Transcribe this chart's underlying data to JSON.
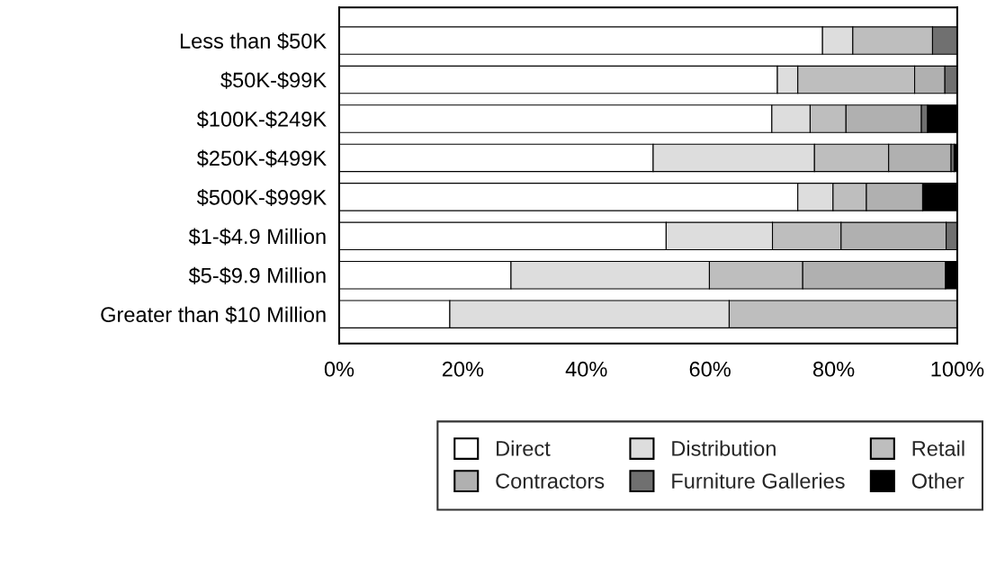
{
  "chart_data": {
    "type": "bar",
    "orientation": "horizontal",
    "stacked": true,
    "categories": [
      "Less than $50K",
      "$50K-$99K",
      "$100K-$249K",
      "$250K-$499K",
      "$500K-$999K",
      "$1-$4.9 Million",
      "$5-$9.9 Million",
      "Greater than $10 Million"
    ],
    "series": [
      {
        "name": "Direct",
        "color": "#ffffff",
        "values": [
          78.2,
          70.9,
          70.0,
          50.8,
          74.2,
          52.9,
          27.8,
          17.9
        ]
      },
      {
        "name": "Distribution",
        "color": "#dddddd",
        "values": [
          4.9,
          3.3,
          6.2,
          26.1,
          5.7,
          17.2,
          32.1,
          45.2
        ]
      },
      {
        "name": "Retail",
        "color": "#bebebe",
        "values": [
          12.9,
          18.9,
          5.8,
          12.0,
          5.4,
          11.1,
          15.1,
          36.9
        ]
      },
      {
        "name": "Contractors",
        "color": "#b0b0b0",
        "values": [
          null,
          4.9,
          12.2,
          10.1,
          9.1,
          17.0,
          23.1,
          null
        ]
      },
      {
        "name": "Furniture Galleries",
        "color": "#707070",
        "values": [
          4.0,
          2.0,
          1.0,
          0.5,
          null,
          2.0,
          null,
          null
        ]
      },
      {
        "name": "Other",
        "color": "#000000",
        "values": [
          null,
          null,
          4.8,
          0.5,
          5.6,
          null,
          2.0,
          null
        ]
      }
    ],
    "xlim": [
      0,
      100
    ],
    "xticks": [
      {
        "value": 0,
        "label": "0%"
      },
      {
        "value": 20,
        "label": "20%"
      },
      {
        "value": 40,
        "label": "40%"
      },
      {
        "value": 60,
        "label": "60%"
      },
      {
        "value": 80,
        "label": "80%"
      },
      {
        "value": 100,
        "label": "100%"
      }
    ],
    "grid": false,
    "legend": "bottom"
  }
}
